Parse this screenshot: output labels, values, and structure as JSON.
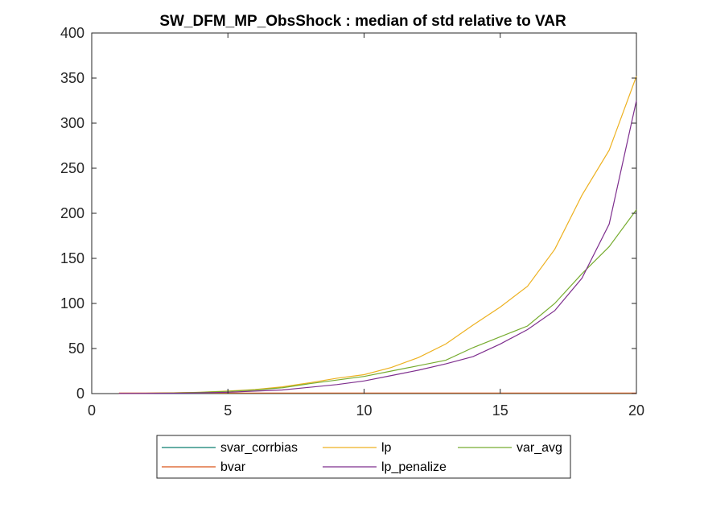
{
  "chart_data": {
    "type": "line",
    "title": "SW_DFM_MP_ObsShock : median of std relative to VAR",
    "xlabel": "",
    "ylabel": "",
    "xlim": [
      0,
      20
    ],
    "ylim": [
      0,
      400
    ],
    "xticks": [
      0,
      5,
      10,
      15,
      20
    ],
    "yticks": [
      0,
      50,
      100,
      150,
      200,
      250,
      300,
      350,
      400
    ],
    "grid": false,
    "legend_position": "bottom-outside",
    "x": [
      1,
      2,
      3,
      4,
      5,
      6,
      7,
      8,
      9,
      10,
      11,
      12,
      13,
      14,
      15,
      16,
      17,
      18,
      19,
      20
    ],
    "series": [
      {
        "name": "svar_corrbias",
        "color": "#0b7e6f",
        "values": [
          0.3,
          0.3,
          0.3,
          0.3,
          0.3,
          0.3,
          0.3,
          0.3,
          0.3,
          0.3,
          0.3,
          0.3,
          0.3,
          0.3,
          0.3,
          0.3,
          0.3,
          0.3,
          0.3,
          0.3
        ]
      },
      {
        "name": "lp",
        "color": "#edb120",
        "values": [
          0.2,
          0.4,
          0.8,
          1.5,
          2.8,
          4.5,
          7.5,
          12,
          17,
          21,
          29,
          40,
          55,
          76,
          96,
          119,
          160,
          220,
          270,
          352
        ]
      },
      {
        "name": "var_avg",
        "color": "#77ac30",
        "values": [
          0.2,
          0.4,
          0.8,
          1.4,
          2.5,
          4,
          6.5,
          11,
          15,
          19,
          25,
          31,
          37,
          51,
          63,
          75,
          100,
          133,
          163,
          204
        ]
      },
      {
        "name": "bvar",
        "color": "#d95319",
        "values": [
          0.6,
          0.6,
          0.6,
          0.6,
          0.6,
          0.6,
          0.6,
          0.6,
          0.6,
          0.6,
          0.6,
          0.6,
          0.6,
          0.6,
          0.6,
          0.6,
          0.6,
          0.6,
          0.6,
          0.6
        ]
      },
      {
        "name": "lp_penalize",
        "color": "#7e2f8e",
        "values": [
          0.1,
          0.2,
          0.4,
          0.8,
          1.5,
          2.8,
          4,
          7,
          10,
          14,
          20,
          26,
          33,
          41,
          55,
          71,
          92,
          128,
          188,
          325
        ]
      }
    ]
  }
}
